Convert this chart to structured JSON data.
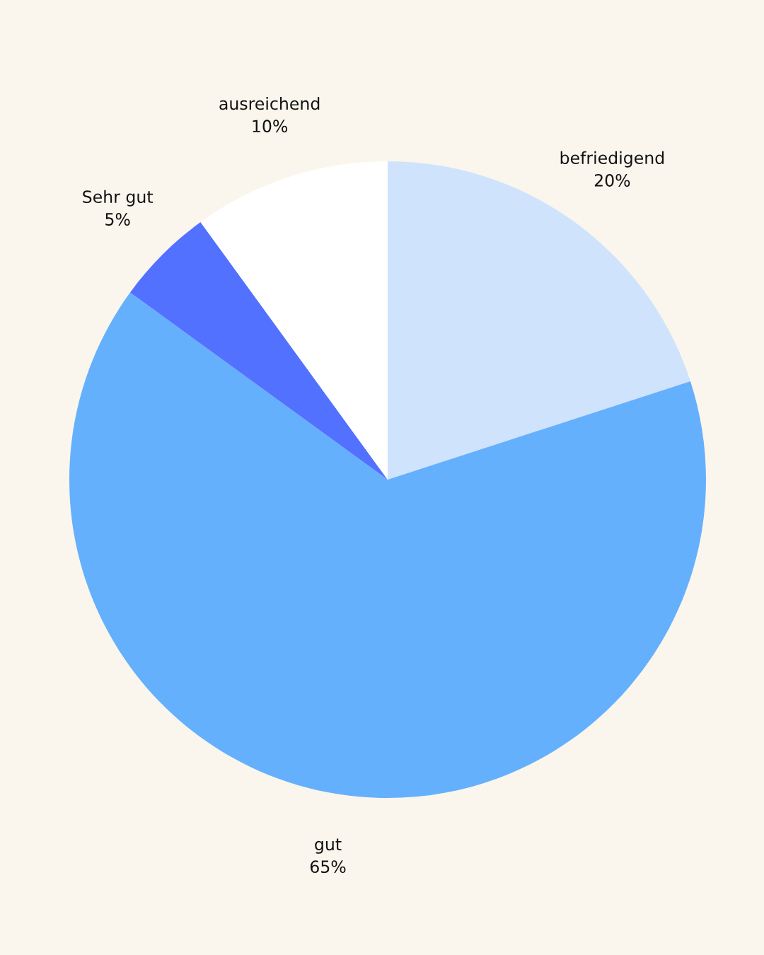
{
  "chart_data": {
    "type": "pie",
    "categories": [
      "befriedigend",
      "gut",
      "Sehr gut",
      "ausreichend"
    ],
    "values": [
      20,
      65,
      5,
      10
    ],
    "value_labels": [
      "20%",
      "65%",
      "5%",
      "10%"
    ],
    "colors": [
      "#cfe3fd",
      "#65b0fd",
      "#5271ff",
      "#ffffff"
    ]
  }
}
